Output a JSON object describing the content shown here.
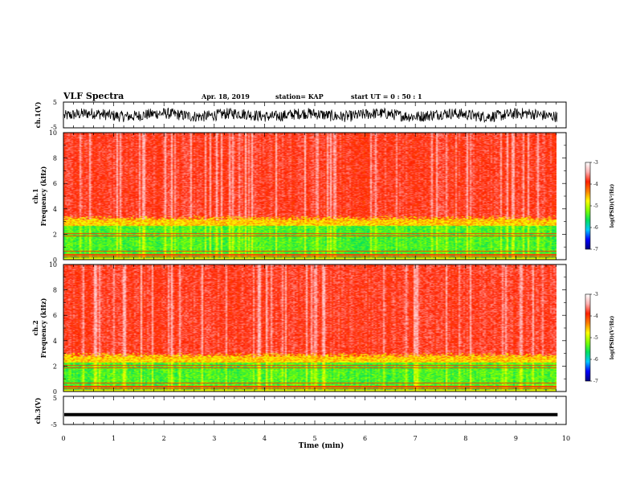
{
  "header": {
    "title": "VLF Spectra",
    "date": "Apr. 18, 2019",
    "station": "station= KAP",
    "start": "start  UT =   0 : 50 : 1"
  },
  "chart_data": {
    "type": "heatmap",
    "x_label": "Time (min)",
    "xlim": [
      0,
      10
    ],
    "x_ticks": [
      "0",
      "1",
      "2",
      "3",
      "4",
      "5",
      "6",
      "7",
      "8",
      "9",
      "10"
    ],
    "data_end_min": 9.83,
    "panels": [
      {
        "id": "ch1-waveform",
        "kind": "line",
        "ylabel": "ch.1(V)",
        "ylim": [
          -5,
          5
        ],
        "y_ticks": [
          "5",
          "-5"
        ],
        "level": 0,
        "amplitude": 2.2
      },
      {
        "id": "ch1-spectrogram",
        "kind": "heatmap",
        "ylabel_1": "ch.1",
        "ylabel_2": "Frequency (kHz)",
        "ylim": [
          0,
          10
        ],
        "y_ticks": [
          "0",
          "2",
          "4",
          "6",
          "8",
          "10"
        ],
        "low_band_top_khz": 3.3,
        "colorbar": {
          "label": "log(PSD)(V²/Hz)",
          "range": [
            -7,
            -3
          ],
          "ticks": [
            "-3",
            "-4",
            "-5",
            "-6",
            "-7"
          ]
        }
      },
      {
        "id": "ch2-spectrogram",
        "kind": "heatmap",
        "ylabel_1": "ch.2",
        "ylabel_2": "Frequency (kHz)",
        "ylim": [
          0,
          10
        ],
        "y_ticks": [
          "0",
          "2",
          "4",
          "6",
          "8",
          "10"
        ],
        "low_band_top_khz": 2.9,
        "colorbar": {
          "label": "log(PSD)(V²/Hz)",
          "range": [
            -7,
            -3
          ],
          "ticks": [
            "-3",
            "-4",
            "-5",
            "-6",
            "-7"
          ]
        }
      },
      {
        "id": "ch3-waveform",
        "kind": "line",
        "ylabel": "ch.3(V)",
        "ylim": [
          -5,
          5
        ],
        "y_ticks": [
          "5",
          "-5"
        ],
        "level": -1.5,
        "amplitude": 0
      }
    ],
    "colormap": [
      "#000080",
      "#0000ff",
      "#00c8ff",
      "#00e060",
      "#80ff00",
      "#ffff00",
      "#ff8000",
      "#ff2000",
      "#ffb0b0",
      "#ffffff"
    ]
  }
}
